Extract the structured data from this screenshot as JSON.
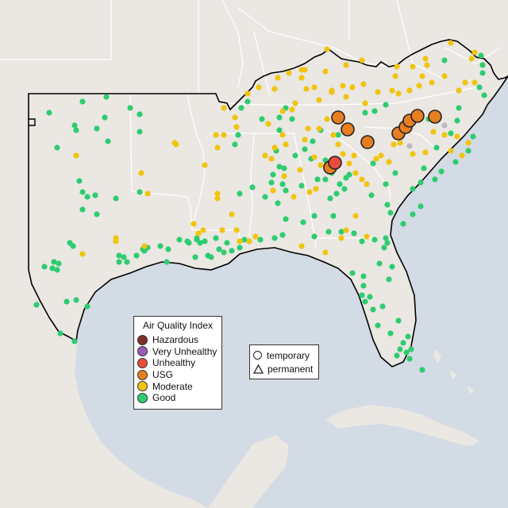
{
  "legend": {
    "title": "Air Quality Index",
    "categories": [
      {
        "label": "Hazardous",
        "color": "#7e2f2a"
      },
      {
        "label": "Very Unhealthy",
        "color": "#9b59b6"
      },
      {
        "label": "Unhealthy",
        "color": "#e74c3c"
      },
      {
        "label": "USG",
        "color": "#e67e22"
      },
      {
        "label": "Moderate",
        "color": "#f1c40f"
      },
      {
        "label": "Good",
        "color": "#2ecc71"
      }
    ]
  },
  "monitor_types": {
    "temporary": "temporary",
    "permanent": "permanent"
  },
  "map_colors": {
    "land": "#ebe7e3",
    "water": "#d3dbe4",
    "state_border": "#ffffff",
    "region_outline": "#000000"
  }
}
